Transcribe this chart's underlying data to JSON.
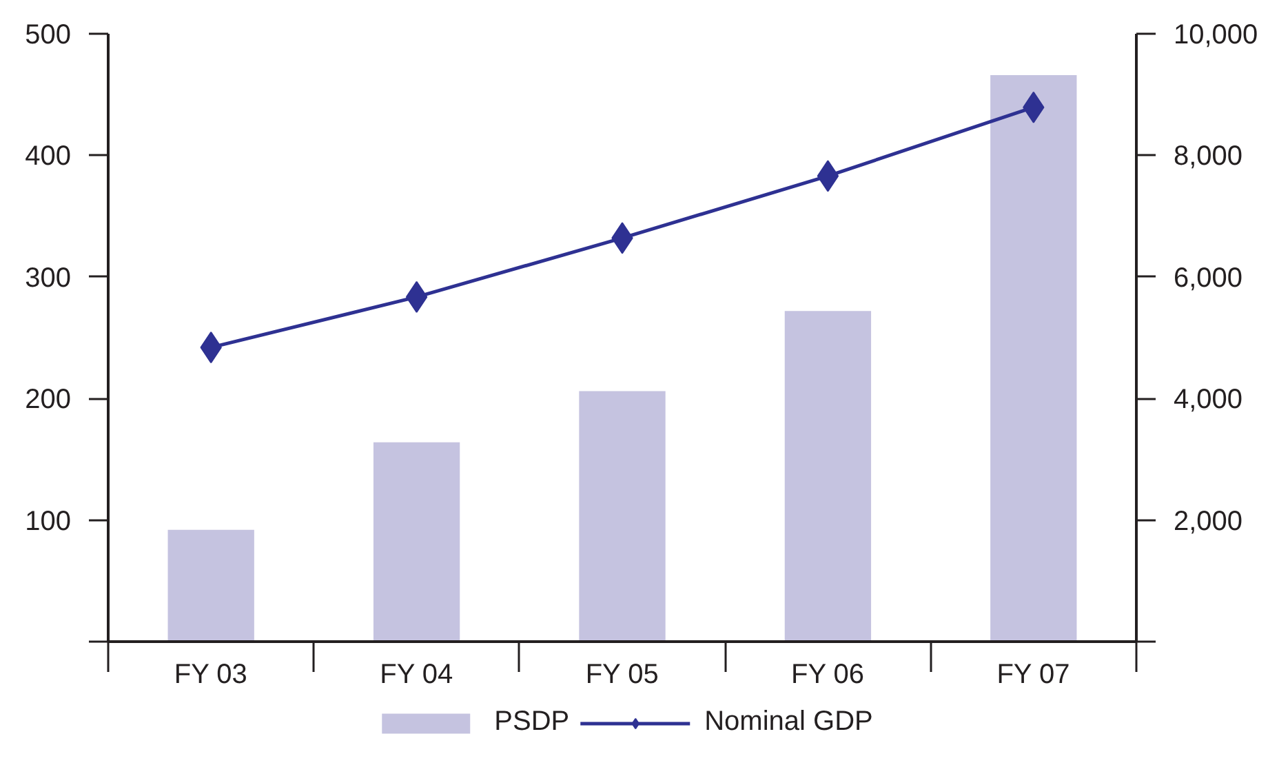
{
  "chart_data": {
    "type": "bar",
    "categories": [
      "FY 03",
      "FY 04",
      "FY 05",
      "FY 06",
      "FY 07"
    ],
    "series": [
      {
        "name": "PSDP",
        "color": "#c5c3e0",
        "values": [
          92,
          164,
          206,
          272,
          466
        ]
      },
      {
        "name": "Nominal GDP",
        "type": "line",
        "axis": "y2",
        "color": "#2e3192",
        "values": [
          4840,
          5670,
          6640,
          7660,
          8790
        ]
      }
    ],
    "ylim": [
      0,
      500
    ],
    "yticks": [
      {
        "value": 0,
        "label": null
      },
      100,
      200,
      300,
      400,
      500
    ],
    "y2lim": [
      0,
      10000
    ],
    "y2ticks": [
      {
        "value": 0,
        "label": null
      },
      {
        "value": 2000,
        "label": "2,000"
      },
      {
        "value": 4000,
        "label": "4,000"
      },
      {
        "value": 6000,
        "label": "6,000"
      },
      {
        "value": 8000,
        "label": "8,000"
      },
      {
        "value": 10000,
        "label": "10,000"
      }
    ],
    "legend": "bottom",
    "marker": "diamond",
    "line_style": "solid",
    "grid": false
  }
}
